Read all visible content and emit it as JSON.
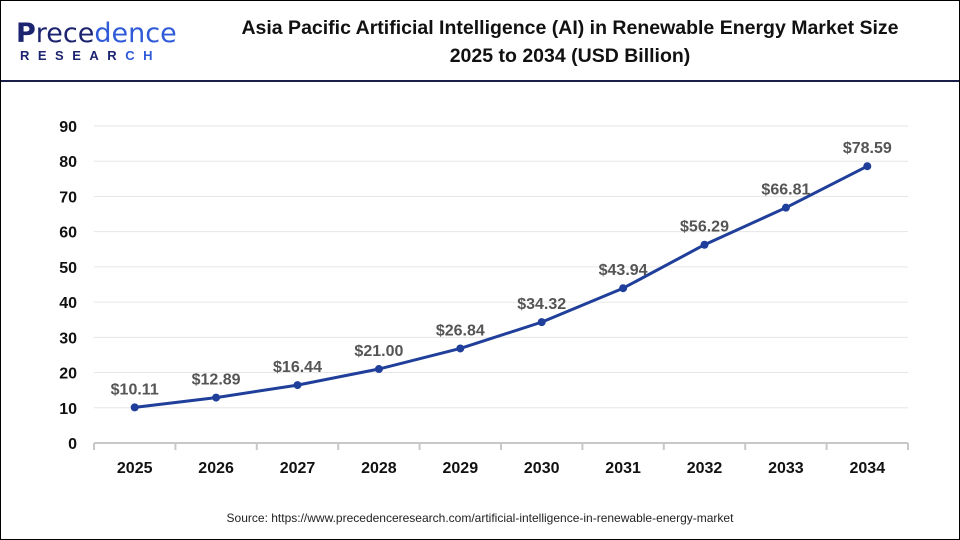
{
  "logo": {
    "text_top": "Precedence",
    "text_bottom": "RESEARCH"
  },
  "title_line1": "Asia Pacific Artificial Intelligence (AI) in Renewable Energy Market Size",
  "title_line2": "2025 to 2034 (USD Billion)",
  "source": "Source: https://www.precedenceresearch.com/artificial-intelligence-in-renewable-energy-market",
  "chart_data": {
    "type": "line",
    "title": "Asia Pacific Artificial Intelligence (AI) in Renewable Energy Market Size 2025 to 2034 (USD Billion)",
    "categories": [
      "2025",
      "2026",
      "2027",
      "2028",
      "2029",
      "2030",
      "2031",
      "2032",
      "2033",
      "2034"
    ],
    "values": [
      10.11,
      12.89,
      16.44,
      21.0,
      26.84,
      34.32,
      43.94,
      56.29,
      66.81,
      78.59
    ],
    "data_labels": [
      "$10.11",
      "$12.89",
      "$16.44",
      "$21.00",
      "$26.84",
      "$34.32",
      "$43.94",
      "$56.29",
      "$66.81",
      "$78.59"
    ],
    "yticks": [
      0,
      10,
      20,
      30,
      40,
      50,
      60,
      70,
      80,
      90
    ],
    "ylim": [
      0,
      90
    ],
    "xlabel": "",
    "ylabel": "",
    "grid": true,
    "line_color": "#1f3f9a",
    "label_color": "#555555"
  }
}
